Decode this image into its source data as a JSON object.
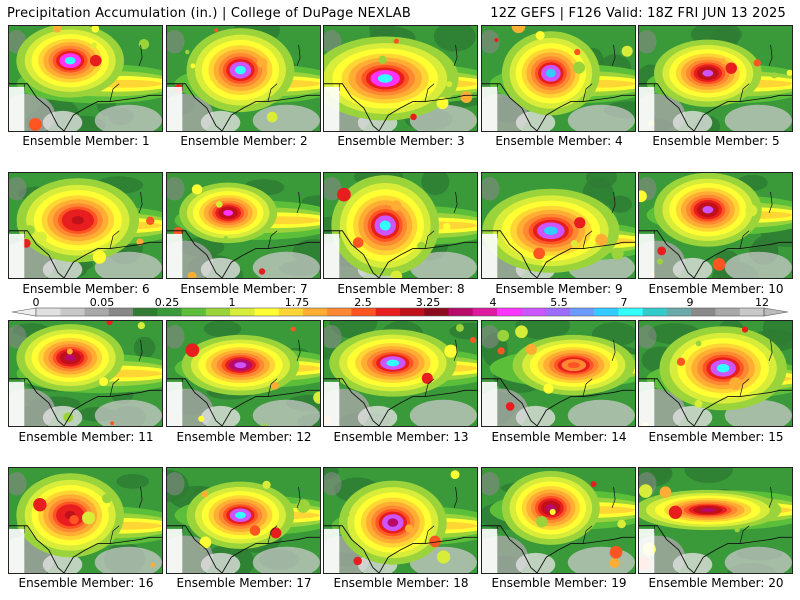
{
  "header": {
    "left": "Precipitation Accumulation (in.) | College of DuPage NEXLAB",
    "right": "12Z GEFS | F126 Valid: 18Z FRI JUN 13 2025"
  },
  "colorbar": {
    "labels": [
      "0",
      "0.05",
      "0.25",
      "1",
      "1.75",
      "2.5",
      "3.25",
      "4",
      "5.5",
      "7",
      "9",
      "12"
    ],
    "colors": [
      "#e0e0e0",
      "#c8c8c8",
      "#a8a8a8",
      "#888888",
      "#2e7d32",
      "#3a9a3a",
      "#5cbf3a",
      "#9ad43a",
      "#d8ec3a",
      "#ffff33",
      "#ffd633",
      "#ffae33",
      "#ff8833",
      "#ff5522",
      "#e81e1e",
      "#c0101a",
      "#8c0a1e",
      "#b80a6a",
      "#e01aa0",
      "#ff33ff",
      "#cc55ff",
      "#9c6cff",
      "#6a9cff",
      "#33ccff",
      "#33ffff",
      "#33cccc",
      "#6aaaaa",
      "#8a8a8a",
      "#a8a8a8",
      "#c8c8c8"
    ]
  },
  "members": [
    {
      "label": "Ensemble Member: 1"
    },
    {
      "label": "Ensemble Member: 2"
    },
    {
      "label": "Ensemble Member: 3"
    },
    {
      "label": "Ensemble Member: 4"
    },
    {
      "label": "Ensemble Member: 5"
    },
    {
      "label": "Ensemble Member: 6"
    },
    {
      "label": "Ensemble Member: 7"
    },
    {
      "label": "Ensemble Member: 8"
    },
    {
      "label": "Ensemble Member: 9"
    },
    {
      "label": "Ensemble Member: 10"
    },
    {
      "label": "Ensemble Member: 11"
    },
    {
      "label": "Ensemble Member: 12"
    },
    {
      "label": "Ensemble Member: 13"
    },
    {
      "label": "Ensemble Member: 14"
    },
    {
      "label": "Ensemble Member: 15"
    },
    {
      "label": "Ensemble Member: 16"
    },
    {
      "label": "Ensemble Member: 17"
    },
    {
      "label": "Ensemble Member: 18"
    },
    {
      "label": "Ensemble Member: 19"
    },
    {
      "label": "Ensemble Member: 20"
    }
  ]
}
